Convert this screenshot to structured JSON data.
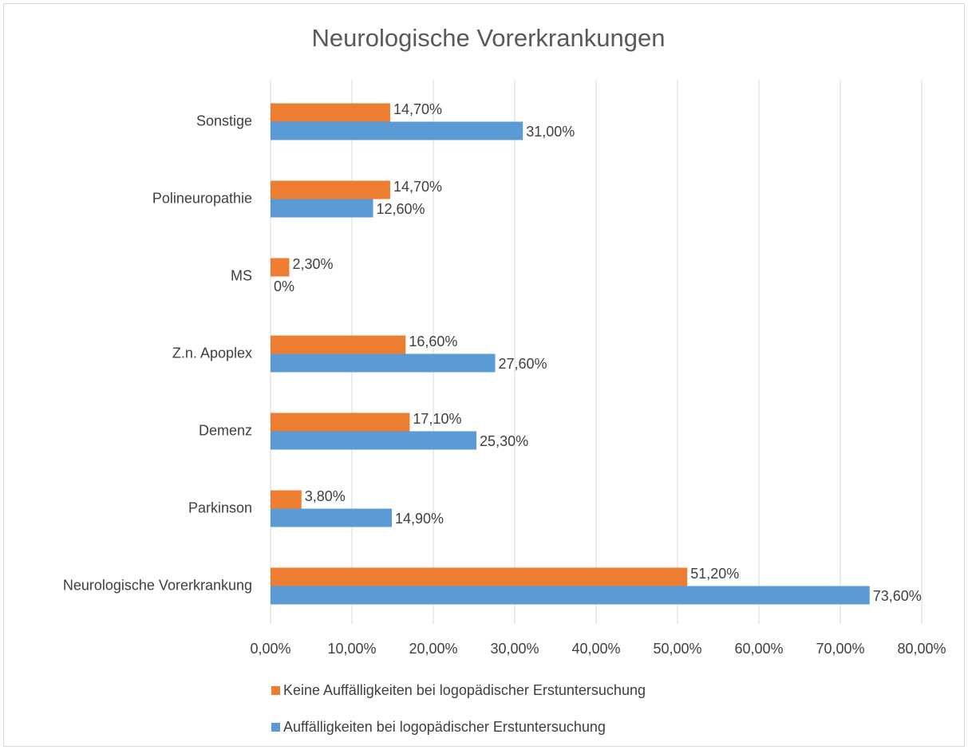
{
  "chart_data": {
    "type": "bar",
    "orientation": "horizontal",
    "title": "Neurologische Vorerkrankungen",
    "categories": [
      "Sonstige",
      "Polineuropathie",
      "MS",
      "Z.n. Apoplex",
      "Demenz",
      "Parkinson",
      "Neurologische Vorerkrankung"
    ],
    "series": [
      {
        "name": "Keine Auffälligkeiten bei logopädischer Erstuntersuchung",
        "color": "#ed7d31",
        "values": [
          14.7,
          14.7,
          2.3,
          16.6,
          17.1,
          3.8,
          51.2
        ],
        "value_labels": [
          "14,70%",
          "14,70%",
          "2,30%",
          "16,60%",
          "17,10%",
          "3,80%",
          "51,20%"
        ]
      },
      {
        "name": "Auffälligkeiten bei logopädischer Erstuntersuchung",
        "color": "#5b9bd5",
        "values": [
          31.0,
          12.6,
          0,
          27.6,
          25.3,
          14.9,
          73.6
        ],
        "value_labels": [
          "31,00%",
          "12,60%",
          "0%",
          "27,60%",
          "25,30%",
          "14,90%",
          "73,60%"
        ]
      }
    ],
    "xlim": [
      0,
      80
    ],
    "xticks": [
      {
        "value": 0,
        "label": "0,00%"
      },
      {
        "value": 10,
        "label": "10,00%"
      },
      {
        "value": 20,
        "label": "20,00%"
      },
      {
        "value": 30,
        "label": "30,00%"
      },
      {
        "value": 40,
        "label": "40,00%"
      },
      {
        "value": 50,
        "label": "50,00%"
      },
      {
        "value": 60,
        "label": "60,00%"
      },
      {
        "value": 70,
        "label": "70,00%"
      },
      {
        "value": 80,
        "label": "80,00%"
      }
    ],
    "grid": true,
    "legend": "bottom"
  }
}
